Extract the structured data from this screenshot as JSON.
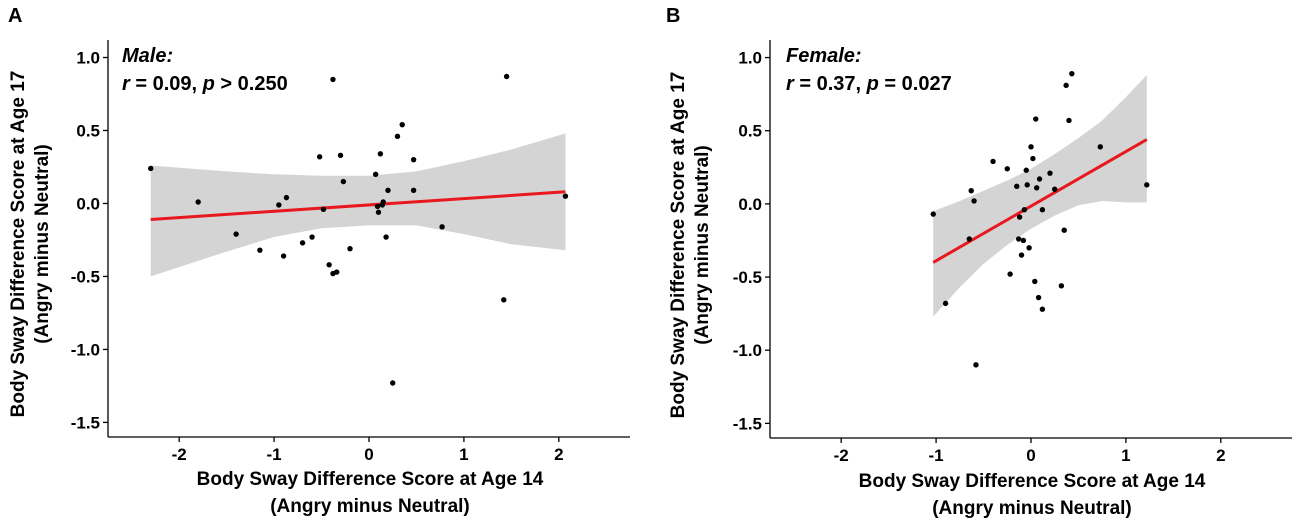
{
  "chart_data": [
    {
      "type": "scatter",
      "panel_label": "A",
      "group": "Male:",
      "stat_r_label": "r",
      "stat_r_value": " = 0.09, ",
      "stat_p_label": "p",
      "stat_p_value": " > 0.250",
      "xlabel_line1": "Body Sway Difference Score at Age 14",
      "xlabel_line2": "(Angry minus Neutral)",
      "ylabel_line1": "Body Sway Difference Score at Age 17",
      "ylabel_line2": "(Angry minus Neutral)",
      "xlim": [
        -2.75,
        2.75
      ],
      "ylim": [
        -1.6,
        1.12
      ],
      "xticks": [
        -2,
        -1,
        0,
        1,
        2
      ],
      "xtick_labels": [
        "-2",
        "-1",
        "0",
        "1",
        "2"
      ],
      "yticks": [
        1.0,
        0.5,
        0.0,
        -0.5,
        -1.0,
        -1.5
      ],
      "ytick_labels": [
        "1.0",
        "0.5",
        "0.0",
        "-0.5",
        "-1.0",
        "-1.5"
      ],
      "fit_line": {
        "x": [
          -2.3,
          2.07
        ],
        "y": [
          -0.11,
          0.08
        ],
        "color": "#e8181f"
      },
      "ci_band": {
        "x": [
          -2.3,
          -1.5,
          -1.0,
          -0.5,
          0.0,
          0.5,
          1.0,
          1.5,
          2.07
        ],
        "upper": [
          0.26,
          0.22,
          0.2,
          0.19,
          0.19,
          0.22,
          0.29,
          0.37,
          0.48
        ],
        "lower": [
          -0.5,
          -0.33,
          -0.23,
          -0.17,
          -0.15,
          -0.15,
          -0.21,
          -0.28,
          -0.32
        ],
        "color": "#d4d4d4"
      },
      "points": [
        [
          -2.3,
          0.24
        ],
        [
          -1.8,
          0.01
        ],
        [
          -1.4,
          -0.21
        ],
        [
          -1.15,
          -0.32
        ],
        [
          -0.95,
          -0.01
        ],
        [
          -0.9,
          -0.36
        ],
        [
          -0.87,
          0.04
        ],
        [
          -0.7,
          -0.27
        ],
        [
          -0.6,
          -0.23
        ],
        [
          -0.52,
          0.32
        ],
        [
          -0.48,
          -0.04
        ],
        [
          -0.42,
          -0.42
        ],
        [
          -0.38,
          0.85
        ],
        [
          -0.38,
          -0.48
        ],
        [
          -0.34,
          -0.47
        ],
        [
          -0.3,
          0.33
        ],
        [
          -0.27,
          0.15
        ],
        [
          -0.2,
          -0.31
        ],
        [
          0.07,
          0.2
        ],
        [
          0.09,
          -0.02
        ],
        [
          0.1,
          -0.06
        ],
        [
          0.12,
          0.34
        ],
        [
          0.14,
          -0.01
        ],
        [
          0.15,
          0.01
        ],
        [
          0.18,
          -0.23
        ],
        [
          0.2,
          0.09
        ],
        [
          0.25,
          -1.23
        ],
        [
          0.3,
          0.46
        ],
        [
          0.35,
          0.54
        ],
        [
          0.47,
          0.3
        ],
        [
          0.47,
          0.09
        ],
        [
          0.77,
          -0.16
        ],
        [
          1.42,
          -0.66
        ],
        [
          1.45,
          0.87
        ],
        [
          2.07,
          0.05
        ]
      ]
    },
    {
      "type": "scatter",
      "panel_label": "B",
      "group": "Female:",
      "stat_r_label": "r",
      "stat_r_value": " = 0.37, ",
      "stat_p_label": "p",
      "stat_p_value": " = 0.027",
      "xlabel_line1": "Body Sway Difference Score at Age 14",
      "xlabel_line2": "(Angry minus Neutral)",
      "ylabel_line1": "Body Sway Difference Score at Age 17",
      "ylabel_line2": "(Angry minus Neutral)",
      "xlim": [
        -2.75,
        2.75
      ],
      "ylim": [
        -1.6,
        1.12
      ],
      "xticks": [
        -2,
        -1,
        0,
        1,
        2
      ],
      "xtick_labels": [
        "-2",
        "-1",
        "0",
        "1",
        "2"
      ],
      "yticks": [
        1.0,
        0.5,
        0.0,
        -0.5,
        -1.0,
        -1.5
      ],
      "ytick_labels": [
        "1.0",
        "0.5",
        "0.0",
        "-0.5",
        "-1.0",
        "-1.5"
      ],
      "fit_line": {
        "x": [
          -1.03,
          1.22
        ],
        "y": [
          -0.4,
          0.44
        ],
        "color": "#e8181f"
      },
      "ci_band": {
        "x": [
          -1.03,
          -0.75,
          -0.5,
          -0.25,
          0.0,
          0.25,
          0.5,
          0.75,
          1.0,
          1.22
        ],
        "upper": [
          -0.05,
          0.02,
          0.09,
          0.16,
          0.24,
          0.34,
          0.45,
          0.57,
          0.73,
          0.88
        ],
        "lower": [
          -0.77,
          -0.57,
          -0.41,
          -0.28,
          -0.17,
          -0.08,
          -0.01,
          0.02,
          0.01,
          0.01
        ],
        "color": "#d4d4d4"
      },
      "points": [
        [
          -1.03,
          -0.07
        ],
        [
          -0.9,
          -0.68
        ],
        [
          -0.65,
          -0.24
        ],
        [
          -0.63,
          0.09
        ],
        [
          -0.6,
          0.02
        ],
        [
          -0.58,
          -1.1
        ],
        [
          -0.4,
          0.29
        ],
        [
          -0.25,
          0.24
        ],
        [
          -0.22,
          -0.48
        ],
        [
          -0.15,
          0.12
        ],
        [
          -0.13,
          -0.24
        ],
        [
          -0.12,
          -0.09
        ],
        [
          -0.1,
          -0.35
        ],
        [
          -0.08,
          -0.25
        ],
        [
          -0.07,
          -0.04
        ],
        [
          -0.05,
          0.23
        ],
        [
          -0.04,
          0.13
        ],
        [
          -0.02,
          -0.3
        ],
        [
          0.0,
          0.39
        ],
        [
          0.02,
          0.31
        ],
        [
          0.04,
          -0.53
        ],
        [
          0.05,
          0.58
        ],
        [
          0.06,
          0.11
        ],
        [
          0.08,
          -0.64
        ],
        [
          0.09,
          0.17
        ],
        [
          0.12,
          -0.72
        ],
        [
          0.12,
          -0.04
        ],
        [
          0.2,
          0.21
        ],
        [
          0.25,
          0.1
        ],
        [
          0.32,
          -0.56
        ],
        [
          0.35,
          -0.18
        ],
        [
          0.37,
          0.81
        ],
        [
          0.4,
          0.57
        ],
        [
          0.43,
          0.89
        ],
        [
          0.73,
          0.39
        ],
        [
          1.22,
          0.13
        ]
      ]
    }
  ]
}
